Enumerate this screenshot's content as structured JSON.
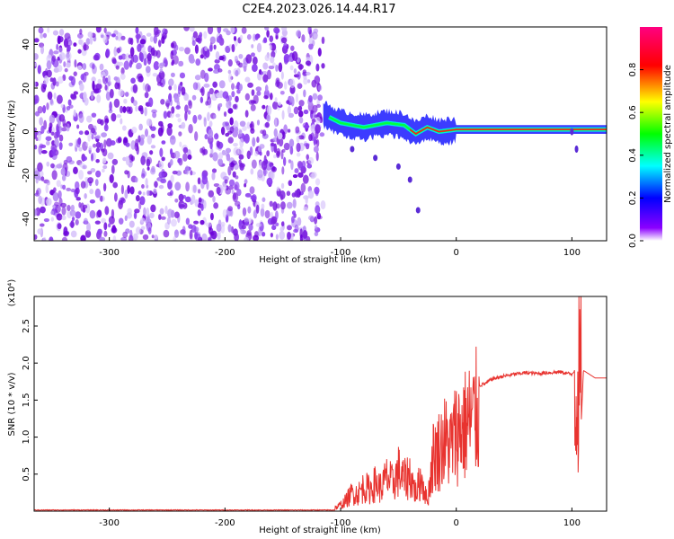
{
  "figure": {
    "title": "C2E4.2023.026.14.44.R17"
  },
  "chart_data": [
    {
      "type": "heatmap",
      "title": "C2E4.2023.026.14.44.R17",
      "xlabel": "Height of straight line (km)",
      "ylabel": "Frequency (Hz)",
      "xlim": [
        -365,
        130
      ],
      "ylim": [
        -50,
        48
      ],
      "x_ticks": [
        -300,
        -200,
        -100,
        0,
        100
      ],
      "y_ticks": [
        -40,
        -20,
        0,
        20,
        40
      ],
      "colorbar": {
        "label": "Normalized spectral amplitude",
        "range": [
          0.0,
          1.0
        ],
        "ticks": [
          0.0,
          0.2,
          0.4,
          0.6,
          0.8
        ],
        "colormap": [
          "#ffffff",
          "#7f00ff",
          "#0000ff",
          "#00ffff",
          "#00ff00",
          "#ffff00",
          "#ff0000",
          "#ff0080"
        ]
      },
      "regions": [
        {
          "name": "noise",
          "x_range": [
            -365,
            -115
          ],
          "y_range": [
            -50,
            48
          ],
          "level": 0.12
        },
        {
          "name": "signal-track",
          "x_range": [
            -115,
            130
          ],
          "center_hz_at": [
            [
              -115,
              8
            ],
            [
              -100,
              4
            ],
            [
              -80,
              2
            ],
            [
              -60,
              4
            ],
            [
              -45,
              3
            ],
            [
              -35,
              -1
            ],
            [
              -25,
              2
            ],
            [
              -15,
              0
            ],
            [
              0,
              1
            ],
            [
              30,
              1
            ],
            [
              100,
              1
            ],
            [
              130,
              1
            ]
          ],
          "level": 0.75
        },
        {
          "name": "branch",
          "points": [
            [
              -90,
              -8
            ],
            [
              -70,
              -12
            ],
            [
              -50,
              -16
            ],
            [
              -40,
              -22
            ],
            [
              -33,
              -36
            ]
          ],
          "level": 0.3
        },
        {
          "name": "spike",
          "points": [
            [
              100,
              0
            ],
            [
              104,
              -8
            ]
          ],
          "level": 0.3
        }
      ],
      "color": "#7b1fe0"
    },
    {
      "type": "line",
      "xlabel": "Height of straight line (km)",
      "ylabel": "SNR (10 * v/v)",
      "y_scale_label": "(x10⁴)",
      "xlim": [
        -365,
        130
      ],
      "ylim": [
        0,
        2.9
      ],
      "x_ticks": [
        -300,
        -200,
        -100,
        0,
        100
      ],
      "y_ticks": [
        0.5,
        1.0,
        1.5,
        2.0,
        2.5
      ],
      "y_unit_multiplier": 10000,
      "series": [
        {
          "color": "#e8332f",
          "x": [
            -365,
            -300,
            -200,
            -120,
            -105,
            -100,
            -95,
            -90,
            -85,
            -80,
            -75,
            -70,
            -65,
            -60,
            -55,
            -50,
            -45,
            -40,
            -35,
            -30,
            -25,
            -20,
            -15,
            -10,
            -5,
            0,
            5,
            10,
            15,
            20,
            25,
            30,
            40,
            50,
            60,
            70,
            80,
            90,
            100,
            103,
            105,
            107,
            110,
            120,
            130
          ],
          "y": [
            0.0,
            0.0,
            0.0,
            0.0,
            0.05,
            0.1,
            0.18,
            0.3,
            0.28,
            0.4,
            0.35,
            0.45,
            0.38,
            0.55,
            0.45,
            0.65,
            0.5,
            0.6,
            0.3,
            0.55,
            0.15,
            0.9,
            1.0,
            1.15,
            1.05,
            1.3,
            1.35,
            1.45,
            1.5,
            1.7,
            1.72,
            1.78,
            1.82,
            1.85,
            1.87,
            1.86,
            1.87,
            1.88,
            1.85,
            1.9,
            2.8,
            0.8,
            1.9,
            1.8,
            1.8
          ]
        }
      ],
      "grid": false
    }
  ]
}
